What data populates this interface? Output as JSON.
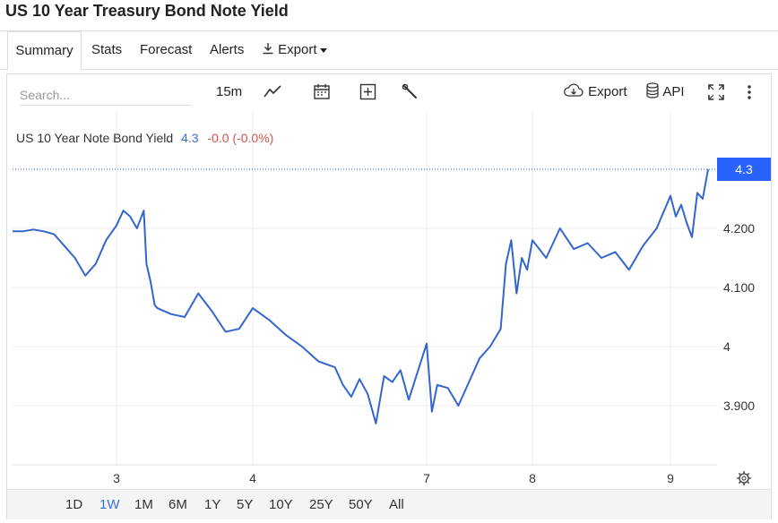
{
  "page": {
    "title": "US 10 Year Treasury Bond Note Yield"
  },
  "tabs": [
    {
      "label": "Summary",
      "active": true
    },
    {
      "label": "Stats"
    },
    {
      "label": "Forecast"
    },
    {
      "label": "Alerts"
    },
    {
      "label": "Export"
    }
  ],
  "toolbar": {
    "search_placeholder": "Search...",
    "interval": "15m",
    "export_label": "Export",
    "api_label": "API"
  },
  "legend": {
    "name": "US 10 Year Note Bond Yield",
    "value": "4.3",
    "change": "-0.0 (-0.0%)"
  },
  "colors": {
    "line": "#3366cc",
    "value_color": "#3a6fd8",
    "change_color": "#d9534f",
    "price_badge": "#2962ff",
    "grid": "#ececec"
  },
  "range_buttons": [
    "1D",
    "1W",
    "1M",
    "6M",
    "1Y",
    "5Y",
    "10Y",
    "25Y",
    "50Y",
    "All"
  ],
  "active_range": "1W",
  "chart_data": {
    "type": "line",
    "title": "",
    "xlabel": "",
    "ylabel": "",
    "x_ticks": [
      "3",
      "4",
      "7",
      "8",
      "9"
    ],
    "y_ticks": [
      "4.200",
      "4.100",
      "4",
      "3.900"
    ],
    "y_tick_values": [
      4.2,
      4.1,
      4.0,
      3.9
    ],
    "ylim": [
      3.8,
      4.4
    ],
    "current_value_label": "4.3",
    "current_value": 4.3,
    "grid": true,
    "series": [
      {
        "x": [
          2.0,
          2.1,
          2.2,
          2.3,
          2.4,
          2.5,
          2.6,
          2.7,
          2.8,
          2.9,
          3.0,
          3.05,
          3.1,
          3.15,
          3.2,
          3.22,
          3.25,
          3.28,
          3.3,
          3.35,
          3.4,
          3.5,
          3.6,
          3.7,
          3.8,
          3.9,
          4.0,
          4.1,
          4.2,
          4.3,
          4.4,
          4.5,
          4.55,
          4.6,
          4.65,
          4.7,
          4.75,
          4.8,
          4.85,
          4.9,
          4.95,
          7.0,
          7.05,
          7.1,
          7.2,
          7.3,
          7.4,
          7.5,
          7.6,
          7.7,
          7.75,
          7.8,
          7.85,
          7.9,
          7.95,
          8.0,
          8.1,
          8.2,
          8.3,
          8.4,
          8.5,
          8.6,
          8.7,
          8.8,
          8.9,
          9.0,
          9.05,
          9.1,
          9.15,
          9.2,
          9.25,
          9.3,
          9.35
        ],
        "values": [
          4.195,
          4.195,
          4.198,
          4.195,
          4.19,
          4.17,
          4.15,
          4.12,
          4.14,
          4.18,
          4.205,
          4.23,
          4.22,
          4.2,
          4.23,
          4.14,
          4.11,
          4.07,
          4.065,
          4.06,
          4.055,
          4.05,
          4.09,
          4.06,
          4.025,
          4.03,
          4.065,
          4.045,
          4.02,
          4.0,
          3.975,
          3.965,
          3.935,
          3.915,
          3.945,
          3.92,
          3.87,
          3.95,
          3.94,
          3.96,
          3.91,
          4.005,
          3.89,
          3.935,
          3.93,
          3.9,
          3.94,
          3.98,
          4.0,
          4.03,
          4.14,
          4.18,
          4.09,
          4.15,
          4.13,
          4.18,
          4.15,
          4.2,
          4.165,
          4.175,
          4.15,
          4.16,
          4.13,
          4.17,
          4.2,
          4.255,
          4.22,
          4.24,
          4.21,
          4.185,
          4.26,
          4.25,
          4.3
        ]
      }
    ]
  }
}
